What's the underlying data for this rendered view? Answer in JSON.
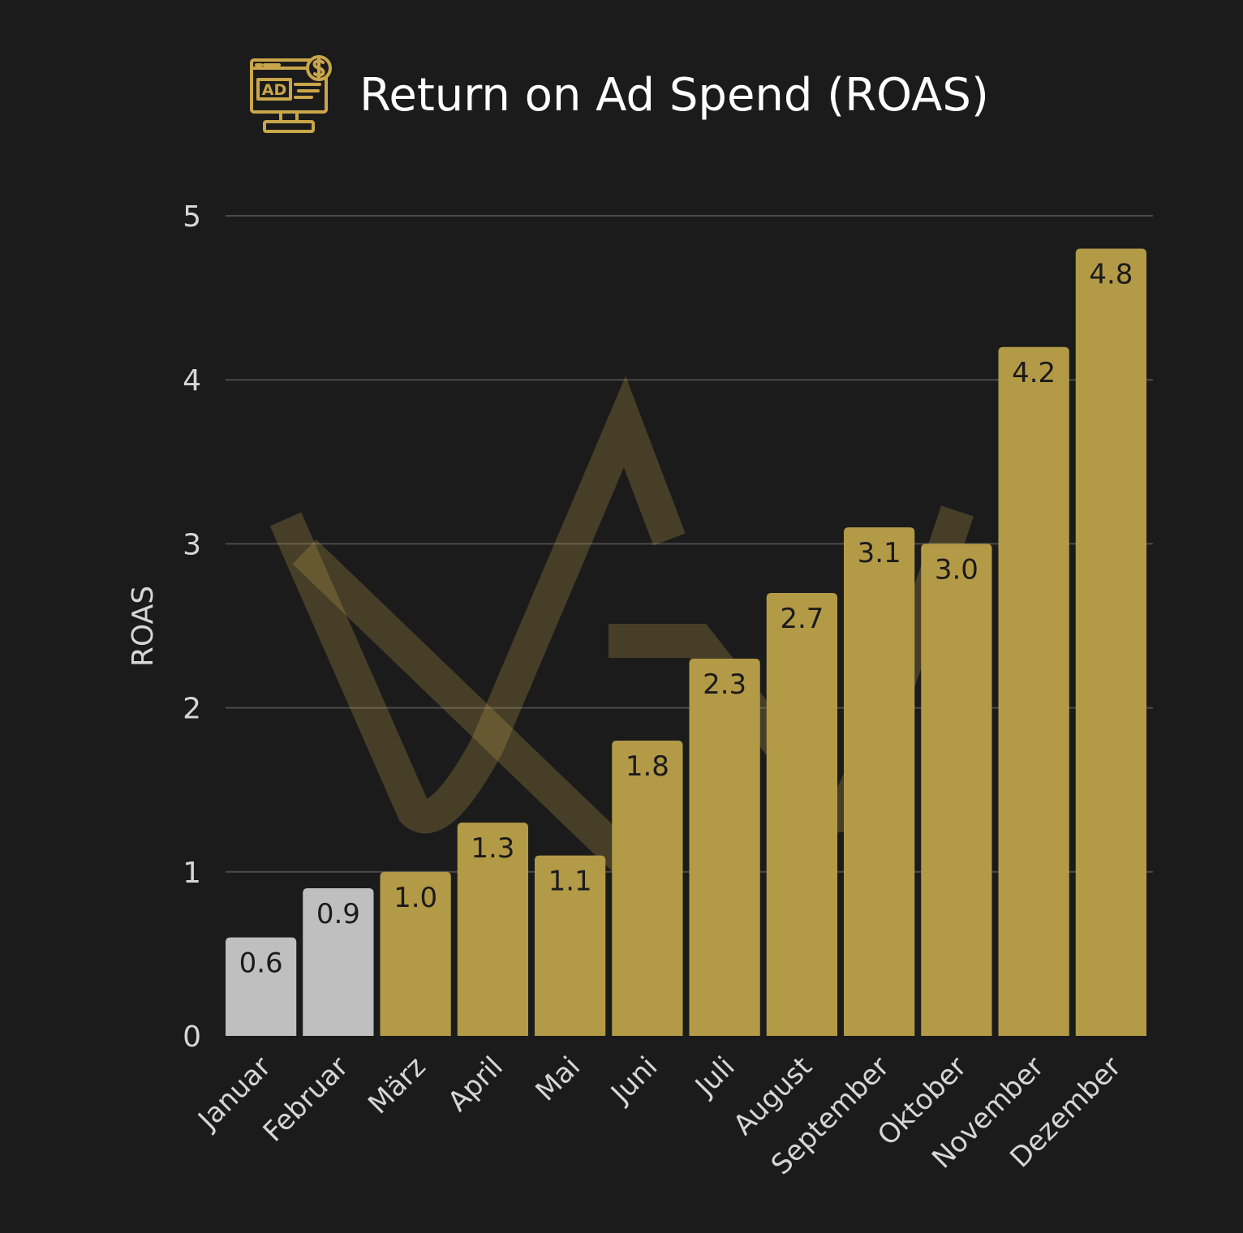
{
  "title": "Return on Ad Spend (ROAS)",
  "logo_icon": "ad-monitor-dollar-icon",
  "watermark_icon": "monogram-watermark-icon",
  "colors": {
    "background": "#1b1b1b",
    "bar_highlight": "#b39a47",
    "bar_muted": "#bfbfbf",
    "grid": "#4a4a4a",
    "text": "#d6d6d6",
    "icon": "#c9a64a"
  },
  "chart_data": {
    "type": "bar",
    "title": "Return on Ad Spend (ROAS)",
    "xlabel": "",
    "ylabel": "ROAS",
    "ylim": [
      0,
      5
    ],
    "yticks": [
      0,
      1,
      2,
      3,
      4,
      5
    ],
    "grid": true,
    "categories": [
      "Januar",
      "Februar",
      "März",
      "April",
      "Mai",
      "Juni",
      "Juli",
      "August",
      "September",
      "Oktober",
      "November",
      "Dezember"
    ],
    "values": [
      0.6,
      0.9,
      1.0,
      1.3,
      1.1,
      1.8,
      2.3,
      2.7,
      3.1,
      3.0,
      4.2,
      4.8
    ],
    "labels": [
      "0.6",
      "0.9",
      "1.0",
      "1.3",
      "1.1",
      "1.8",
      "2.3",
      "2.7",
      "3.1",
      "3.0",
      "4.2",
      "4.8"
    ],
    "bar_colors": [
      "#bfbfbf",
      "#bfbfbf",
      "#b39a47",
      "#b39a47",
      "#b39a47",
      "#b39a47",
      "#b39a47",
      "#b39a47",
      "#b39a47",
      "#b39a47",
      "#b39a47",
      "#b39a47"
    ]
  }
}
